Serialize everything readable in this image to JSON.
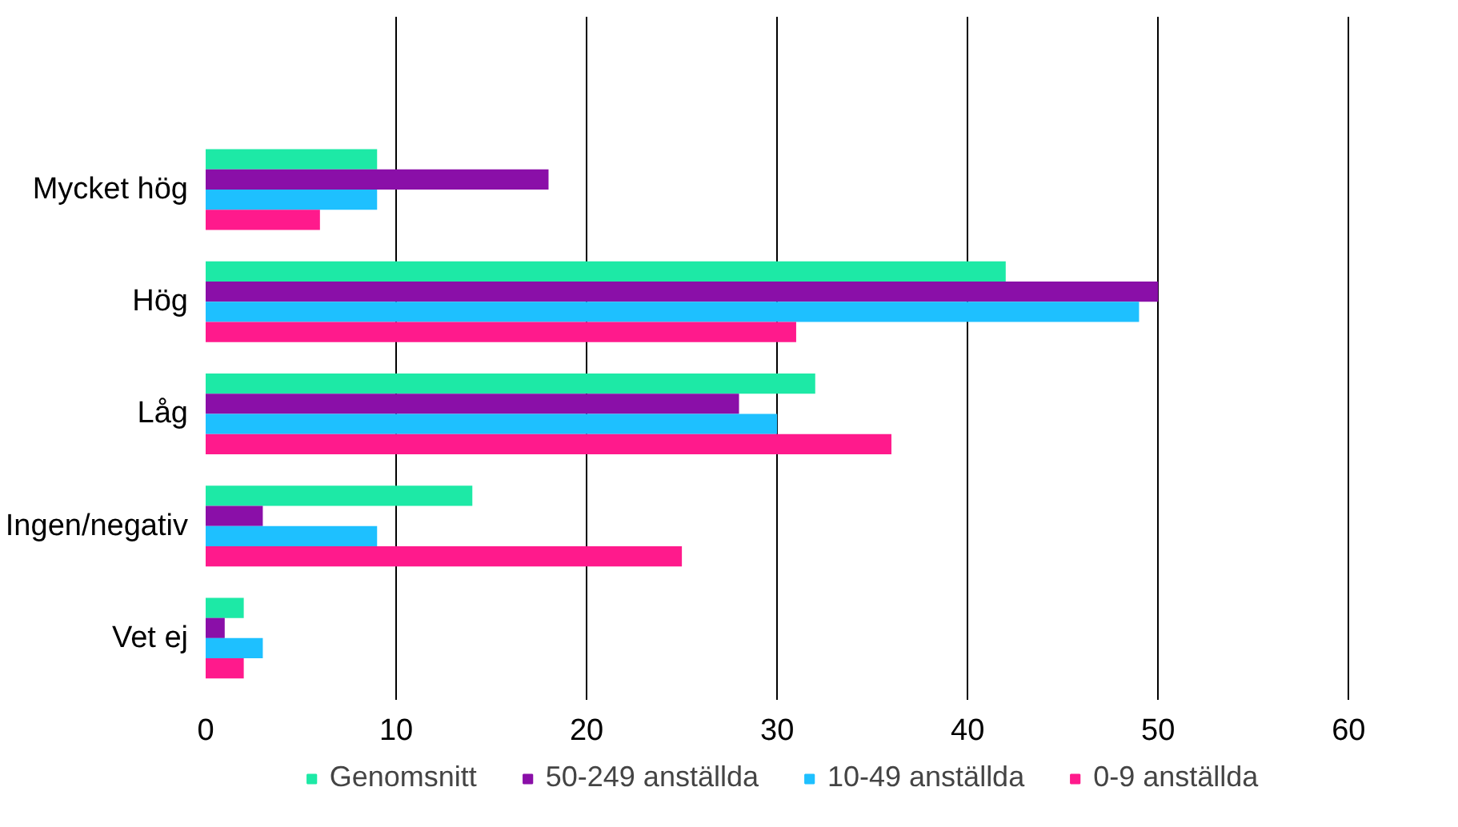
{
  "chart_data": {
    "type": "bar",
    "orientation": "horizontal",
    "categories": [
      "Mycket hög",
      "Hög",
      "Låg",
      "Ingen/negativ",
      "Vet ej"
    ],
    "series": [
      {
        "name": "Genomsnitt",
        "color": "#1de9a6",
        "values": [
          9,
          42,
          32,
          14,
          2
        ]
      },
      {
        "name": "50-249 anställda",
        "color": "#8a0fa8",
        "values": [
          18,
          50,
          28,
          3,
          1
        ]
      },
      {
        "name": "10-49 anställda",
        "color": "#1ec0ff",
        "values": [
          9,
          49,
          30,
          9,
          3
        ]
      },
      {
        "name": "0-9 anställda",
        "color": "#ff1a8c",
        "values": [
          6,
          31,
          36,
          25,
          2
        ]
      }
    ],
    "xlim": [
      0,
      60
    ],
    "xticks": [
      0,
      10,
      20,
      30,
      40,
      50,
      60
    ],
    "grid": "x",
    "legend": "bottom"
  }
}
